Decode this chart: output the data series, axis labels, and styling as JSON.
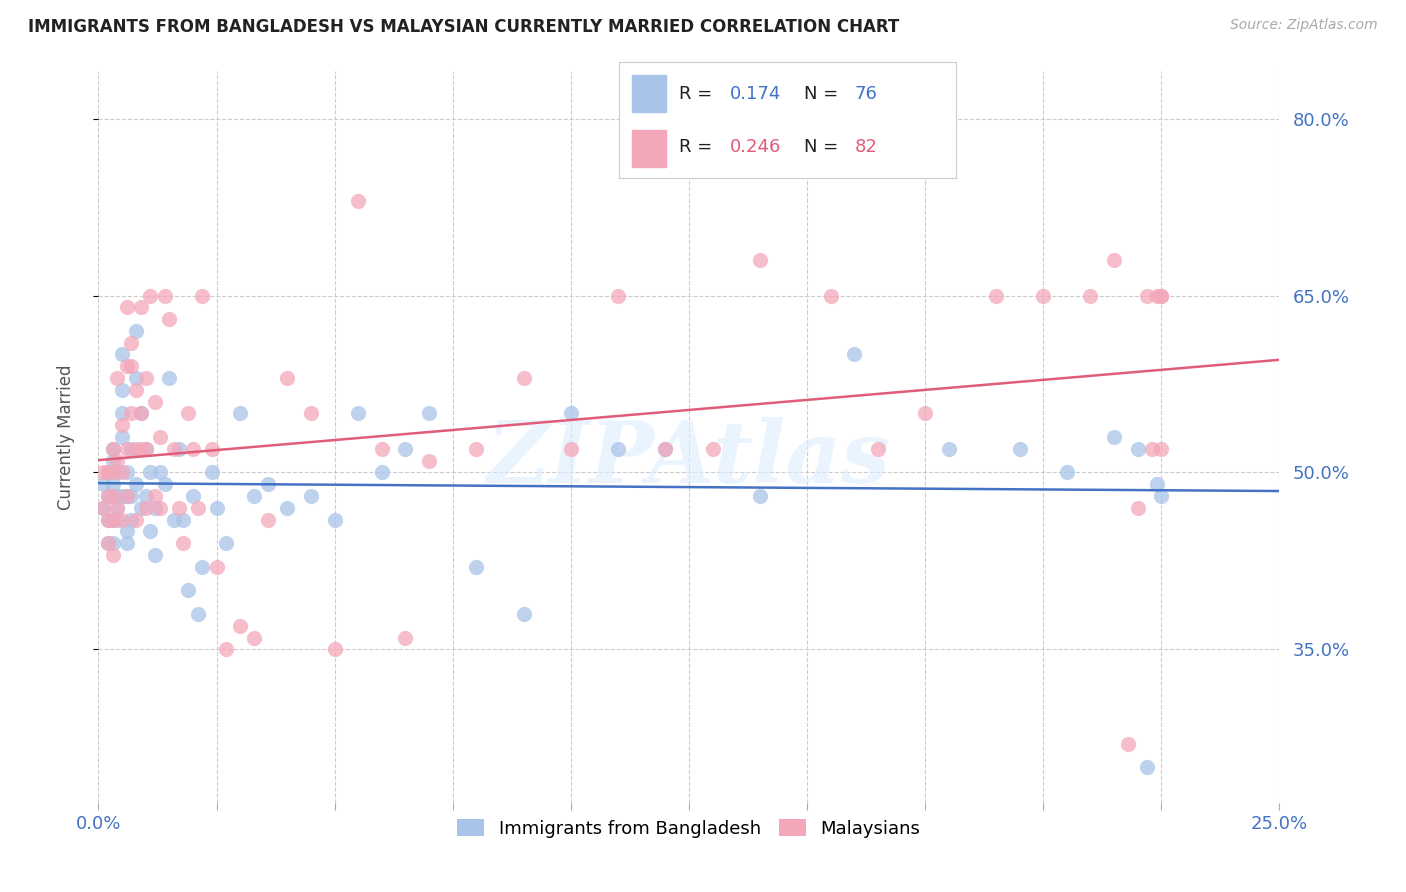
{
  "title": "IMMIGRANTS FROM BANGLADESH VS MALAYSIAN CURRENTLY MARRIED CORRELATION CHART",
  "source": "Source: ZipAtlas.com",
  "ylabel": "Currently Married",
  "y_ticks": [
    0.35,
    0.5,
    0.65,
    0.8
  ],
  "y_tick_labels": [
    "35.0%",
    "50.0%",
    "65.0%",
    "80.0%"
  ],
  "x_ticks": [
    0.0,
    0.025,
    0.05,
    0.075,
    0.1,
    0.125,
    0.15,
    0.175,
    0.2,
    0.225,
    0.25
  ],
  "xlim": [
    0.0,
    0.25
  ],
  "ylim": [
    0.22,
    0.84
  ],
  "series1_name": "Immigrants from Bangladesh",
  "series1_R": "0.174",
  "series1_N": "76",
  "series1_color": "#a8c4e8",
  "series1_line_color": "#4472c4",
  "series2_name": "Malaysians",
  "series2_R": "0.246",
  "series2_N": "82",
  "series2_color": "#f4a7b9",
  "series2_line_color": "#e05c78",
  "watermark": "ZIPAtlas",
  "stat_label_color": "#4472c4",
  "stat_R_color": "#4472c4",
  "stat_N_color": "#4472c4",
  "stat_R2_color": "#e05c78",
  "stat_N2_color": "#e05c78",
  "background_color": "#ffffff",
  "grid_color": "#cccccc",
  "series1_x": [
    0.001,
    0.001,
    0.002,
    0.002,
    0.002,
    0.002,
    0.003,
    0.003,
    0.003,
    0.003,
    0.003,
    0.004,
    0.004,
    0.004,
    0.004,
    0.005,
    0.005,
    0.005,
    0.005,
    0.005,
    0.006,
    0.006,
    0.006,
    0.006,
    0.007,
    0.007,
    0.007,
    0.008,
    0.008,
    0.008,
    0.009,
    0.009,
    0.01,
    0.01,
    0.011,
    0.011,
    0.012,
    0.012,
    0.013,
    0.014,
    0.015,
    0.016,
    0.017,
    0.018,
    0.019,
    0.02,
    0.021,
    0.022,
    0.024,
    0.025,
    0.027,
    0.03,
    0.033,
    0.036,
    0.04,
    0.045,
    0.05,
    0.055,
    0.06,
    0.065,
    0.07,
    0.08,
    0.09,
    0.1,
    0.11,
    0.12,
    0.14,
    0.16,
    0.18,
    0.195,
    0.205,
    0.215,
    0.22,
    0.222,
    0.224,
    0.225
  ],
  "series1_y": [
    0.47,
    0.49,
    0.46,
    0.48,
    0.5,
    0.44,
    0.46,
    0.49,
    0.52,
    0.44,
    0.51,
    0.47,
    0.5,
    0.46,
    0.48,
    0.53,
    0.57,
    0.55,
    0.48,
    0.6,
    0.45,
    0.5,
    0.48,
    0.44,
    0.52,
    0.48,
    0.46,
    0.58,
    0.62,
    0.49,
    0.55,
    0.47,
    0.48,
    0.52,
    0.45,
    0.5,
    0.43,
    0.47,
    0.5,
    0.49,
    0.58,
    0.46,
    0.52,
    0.46,
    0.4,
    0.48,
    0.38,
    0.42,
    0.5,
    0.47,
    0.44,
    0.55,
    0.48,
    0.49,
    0.47,
    0.48,
    0.46,
    0.55,
    0.5,
    0.52,
    0.55,
    0.42,
    0.38,
    0.55,
    0.52,
    0.52,
    0.48,
    0.6,
    0.52,
    0.52,
    0.5,
    0.53,
    0.52,
    0.25,
    0.49,
    0.48
  ],
  "series2_x": [
    0.001,
    0.001,
    0.002,
    0.002,
    0.002,
    0.002,
    0.003,
    0.003,
    0.003,
    0.003,
    0.003,
    0.004,
    0.004,
    0.004,
    0.005,
    0.005,
    0.005,
    0.006,
    0.006,
    0.006,
    0.006,
    0.007,
    0.007,
    0.007,
    0.008,
    0.008,
    0.008,
    0.009,
    0.009,
    0.009,
    0.01,
    0.01,
    0.01,
    0.011,
    0.012,
    0.012,
    0.013,
    0.013,
    0.014,
    0.015,
    0.016,
    0.017,
    0.018,
    0.019,
    0.02,
    0.021,
    0.022,
    0.024,
    0.025,
    0.027,
    0.03,
    0.033,
    0.036,
    0.04,
    0.045,
    0.05,
    0.055,
    0.06,
    0.065,
    0.07,
    0.08,
    0.09,
    0.1,
    0.11,
    0.12,
    0.13,
    0.14,
    0.155,
    0.165,
    0.175,
    0.19,
    0.2,
    0.21,
    0.215,
    0.218,
    0.22,
    0.222,
    0.223,
    0.224,
    0.225,
    0.225,
    0.225
  ],
  "series2_y": [
    0.47,
    0.5,
    0.48,
    0.46,
    0.5,
    0.44,
    0.43,
    0.5,
    0.48,
    0.46,
    0.52,
    0.51,
    0.58,
    0.47,
    0.5,
    0.46,
    0.54,
    0.59,
    0.64,
    0.52,
    0.48,
    0.55,
    0.61,
    0.59,
    0.52,
    0.57,
    0.46,
    0.64,
    0.52,
    0.55,
    0.52,
    0.58,
    0.47,
    0.65,
    0.56,
    0.48,
    0.53,
    0.47,
    0.65,
    0.63,
    0.52,
    0.47,
    0.44,
    0.55,
    0.52,
    0.47,
    0.65,
    0.52,
    0.42,
    0.35,
    0.37,
    0.36,
    0.46,
    0.58,
    0.55,
    0.35,
    0.73,
    0.52,
    0.36,
    0.51,
    0.52,
    0.58,
    0.52,
    0.65,
    0.52,
    0.52,
    0.68,
    0.65,
    0.52,
    0.55,
    0.65,
    0.65,
    0.65,
    0.68,
    0.27,
    0.47,
    0.65,
    0.52,
    0.65,
    0.65,
    0.52,
    0.65
  ]
}
